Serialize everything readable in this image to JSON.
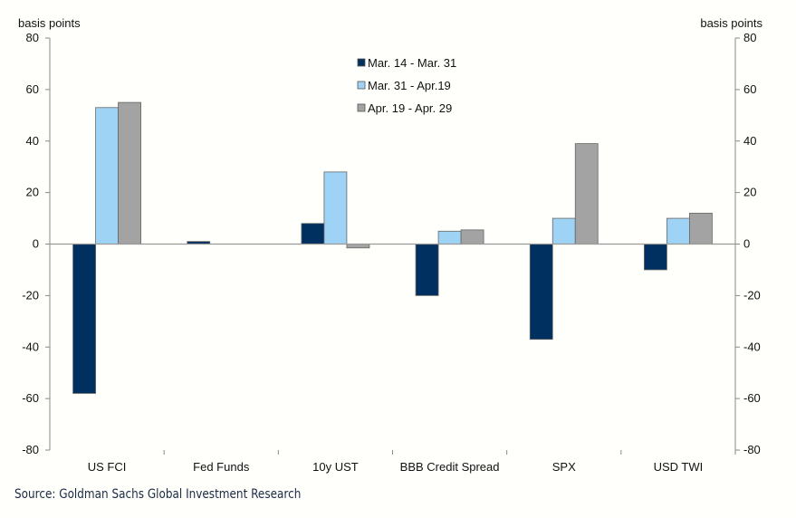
{
  "chart_data": {
    "type": "bar",
    "title": "",
    "ylabel_left": "basis points",
    "ylabel_right": "basis points",
    "ylim": [
      -80,
      80
    ],
    "yticks": [
      80,
      60,
      40,
      20,
      0,
      -20,
      -40,
      -60,
      -80
    ],
    "categories": [
      "US FCI",
      "Fed Funds",
      "10y UST",
      "BBB Credit Spread",
      "SPX",
      "USD TWI"
    ],
    "series": [
      {
        "name": "Mar. 14 - Mar. 31",
        "color": "#00305f",
        "values": [
          -58,
          1,
          8,
          -20,
          -37,
          -10
        ]
      },
      {
        "name": "Mar. 31 - Apr.19",
        "color": "#9fd3f5",
        "values": [
          53,
          0,
          28,
          5,
          10,
          10
        ]
      },
      {
        "name": "Apr. 19 - Apr. 29",
        "color": "#a3a3a3",
        "values": [
          55,
          0,
          -1.5,
          5.5,
          39,
          12
        ]
      }
    ],
    "legend": "top-center",
    "grid": false
  },
  "source": "Source: Goldman Sachs Global Investment Research"
}
